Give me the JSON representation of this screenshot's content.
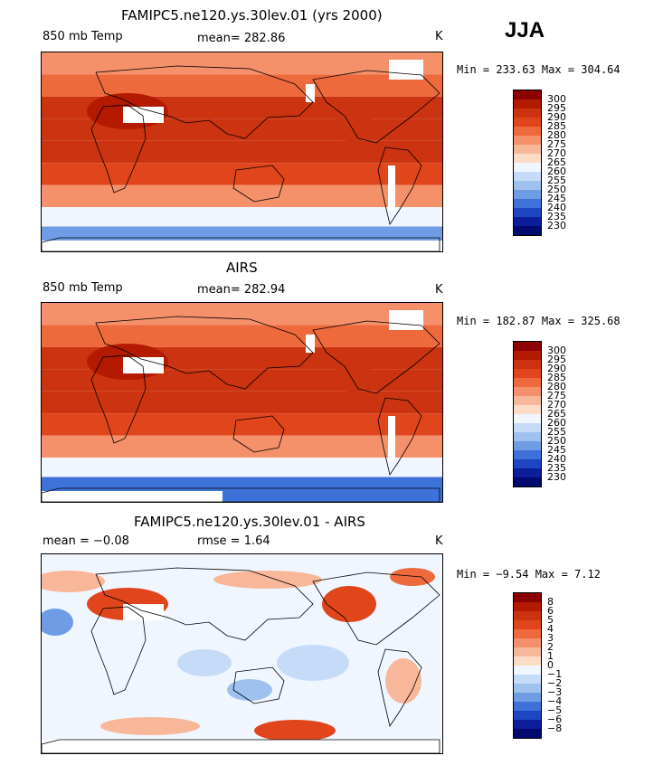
{
  "season_label": "JJA",
  "panels": [
    {
      "id": "model",
      "title": "FAMIPC5.ne120.ys.30lev.01 (yrs 2000)",
      "left_label": "850 mb Temp",
      "center_label": "mean= 282.86",
      "unit": "K",
      "minmax": "Min = 233.63 Max = 304.64"
    },
    {
      "id": "obs",
      "title": "AIRS",
      "left_label": "850 mb Temp",
      "center_label": "mean= 282.94",
      "unit": "K",
      "minmax": "Min = 182.87 Max = 325.68"
    },
    {
      "id": "diff",
      "title": "FAMIPC5.ne120.ys.30lev.01 - AIRS",
      "left_label": "mean =  −0.08",
      "center_label": "rmse =   1.64",
      "unit": "K",
      "minmax": "Min =  −9.54 Max =   7.12"
    }
  ],
  "colorbars": {
    "temp": {
      "ticks": [
        "300",
        "295",
        "290",
        "285",
        "280",
        "275",
        "270",
        "265",
        "260",
        "255",
        "250",
        "245",
        "240",
        "235",
        "230"
      ],
      "colors": [
        "#8b0000",
        "#b31a00",
        "#cc3311",
        "#e0451c",
        "#ee6a3d",
        "#f4906a",
        "#f9b79a",
        "#fddcc6",
        "#f0f6ff",
        "#c6dbf8",
        "#9fc1f0",
        "#6e9de6",
        "#3f72d9",
        "#1c46c2",
        "#0a1f99",
        "#000a70"
      ]
    },
    "diff": {
      "ticks": [
        "8",
        "6",
        "5",
        "4",
        "3",
        "2",
        "1",
        "0",
        "−1",
        "−2",
        "−3",
        "−4",
        "−5",
        "−6",
        "−8"
      ],
      "colors": [
        "#8b0000",
        "#b31a00",
        "#cc3311",
        "#e0451c",
        "#ee6a3d",
        "#f4906a",
        "#f9b79a",
        "#fddcc6",
        "#f0f6ff",
        "#c6dbf8",
        "#9fc1f0",
        "#6e9de6",
        "#3f72d9",
        "#1c46c2",
        "#0a1f99",
        "#000a70"
      ]
    }
  },
  "chart_data": [
    {
      "type": "heatmap",
      "title": "FAMIPC5.ne120.ys.30lev.01 (yrs 2000)",
      "variable": "850 mb Temp",
      "units": "K",
      "mean": 282.86,
      "min": 233.63,
      "max": 304.64,
      "contour_levels": [
        230,
        235,
        240,
        245,
        250,
        255,
        260,
        265,
        270,
        275,
        280,
        285,
        290,
        295,
        300
      ],
      "projection": "cylindrical equidistant, global",
      "zonal_mean_profile": {
        "lat": [
          80,
          60,
          40,
          20,
          0,
          -20,
          -40,
          -60,
          -75
        ],
        "value": [
          275,
          283,
          290,
          293,
          291,
          287,
          279,
          262,
          248
        ]
      }
    },
    {
      "type": "heatmap",
      "title": "AIRS",
      "variable": "850 mb Temp",
      "units": "K",
      "mean": 282.94,
      "min": 182.87,
      "max": 325.68,
      "contour_levels": [
        230,
        235,
        240,
        245,
        250,
        255,
        260,
        265,
        270,
        275,
        280,
        285,
        290,
        295,
        300
      ],
      "projection": "cylindrical equidistant, global",
      "zonal_mean_profile": {
        "lat": [
          80,
          60,
          40,
          20,
          0,
          -20,
          -40,
          -60,
          -75
        ],
        "value": [
          276,
          284,
          291,
          293,
          291,
          287,
          279,
          260,
          242
        ]
      }
    },
    {
      "type": "heatmap",
      "title": "FAMIPC5.ne120.ys.30lev.01 - AIRS",
      "variable": "850 mb Temp",
      "units": "K",
      "mean": -0.08,
      "rmse": 1.64,
      "min": -9.54,
      "max": 7.12,
      "contour_levels": [
        -8,
        -6,
        -5,
        -4,
        -3,
        -2,
        -1,
        0,
        1,
        2,
        3,
        4,
        5,
        6,
        8
      ],
      "projection": "cylindrical equidistant, global"
    }
  ]
}
